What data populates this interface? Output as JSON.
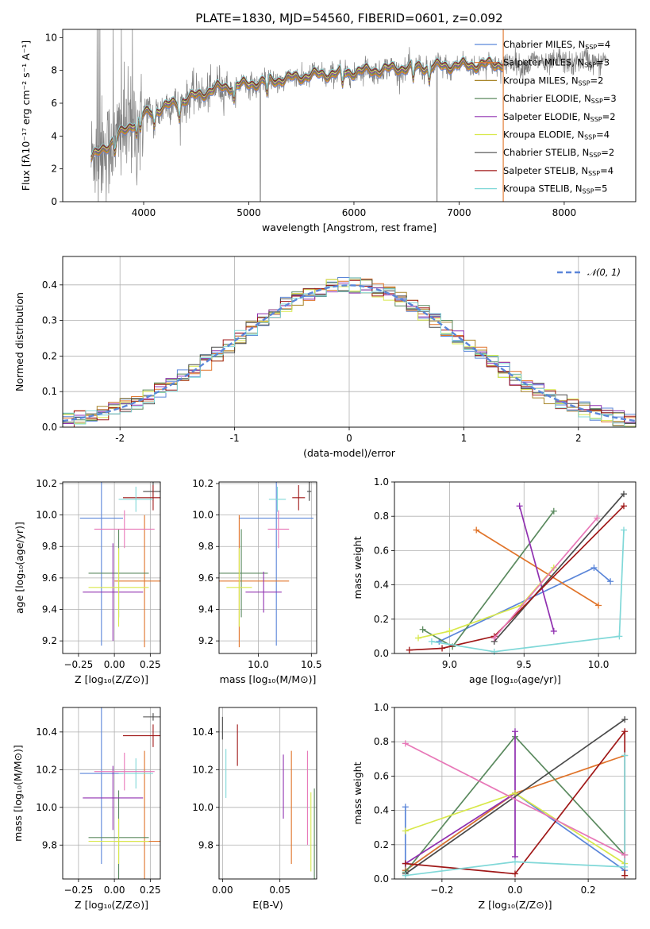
{
  "chart_data": [
    {
      "id": "spectrum",
      "type": "line",
      "title": "PLATE=1830, MJD=54560, FIBERID=0601, z=0.092",
      "xlabel": "wavelength [Angstrom, rest frame]",
      "ylabel": "Flux [fλ10⁻¹⁷ erg cm⁻² s⁻¹ A⁻¹]",
      "xlim": [
        3230,
        8680
      ],
      "ylim": [
        0,
        10.5
      ],
      "xticks": [
        4000,
        5000,
        6000,
        7000,
        8000
      ],
      "yticks": [
        0,
        2,
        4,
        6,
        8,
        10
      ],
      "legend_position": "right",
      "grid": false,
      "series": [
        {
          "name": "Chabrier MILES, N",
          "sub": "SSP",
          "suffix": "=4",
          "color": "#5b86d9"
        },
        {
          "name": "Salpeter MILES, N",
          "sub": "SSP",
          "suffix": "=3",
          "color": "#e0742a"
        },
        {
          "name": "Kroupa MILES, N",
          "sub": "SSP",
          "suffix": "=2",
          "color": "#a8862a"
        },
        {
          "name": "Chabrier ELODIE, N",
          "sub": "SSP",
          "suffix": "=3",
          "color": "#5b8a5f"
        },
        {
          "name": "Salpeter ELODIE, N",
          "sub": "SSP",
          "suffix": "=2",
          "color": "#9030b0"
        },
        {
          "name": "Kroupa ELODIE, N",
          "sub": "SSP",
          "suffix": "=4",
          "color": "#d8e84a"
        },
        {
          "name": "Chabrier STELIB, N",
          "sub": "SSP",
          "suffix": "=2",
          "color": "#4a4a4a"
        },
        {
          "name": "Salpeter STELIB, N",
          "sub": "SSP",
          "suffix": "=4",
          "color": "#a01818"
        },
        {
          "name": "Kroupa STELIB, N",
          "sub": "SSP",
          "suffix": "=5",
          "color": "#80d8d8"
        }
      ],
      "data_color": "#808080",
      "x_range_data": [
        3500,
        8400
      ],
      "model_range": [
        3500,
        7420
      ]
    },
    {
      "id": "residuals",
      "type": "histogram",
      "xlabel": "(data-model)/error",
      "ylabel": "Normed distribution",
      "xlim": [
        -2.5,
        2.5
      ],
      "ylim": [
        0,
        0.48
      ],
      "xticks": [
        -2,
        -1,
        0,
        1,
        2
      ],
      "yticks": [
        0,
        0.1,
        0.2,
        0.3,
        0.4
      ],
      "legend": "𝒩(0, 1)",
      "legend_position": "top-right",
      "grid": true,
      "gauss_color": "#5b86d9"
    },
    {
      "id": "z-age",
      "type": "errorbar",
      "xlabel": "Z [log₁₀(Z/Z⊙)]",
      "ylabel": "age  [log₁₀(age/yr)]",
      "xlim": [
        -0.36,
        0.32
      ],
      "ylim": [
        9.12,
        10.21
      ],
      "xticks": [
        -0.25,
        0.0,
        0.25
      ],
      "xticklabels": [
        "−0.25",
        "0.00",
        "0.25"
      ],
      "yticks": [
        9.2,
        9.4,
        9.6,
        9.8,
        10.0,
        10.2
      ],
      "grid": true,
      "points": [
        {
          "x": -0.09,
          "y": 9.98,
          "xe": 0.15,
          "ye": 0.81,
          "color": "#5b86d9"
        },
        {
          "x": 0.21,
          "y": 9.58,
          "xe": 0.21,
          "ye": 0.42,
          "color": "#e0742a"
        },
        {
          "x": 0.03,
          "y": 9.63,
          "xe": 0.21,
          "ye": 0.28,
          "color": "#5b8a5f"
        },
        {
          "x": -0.01,
          "y": 9.51,
          "xe": 0.21,
          "ye": 0.31,
          "color": "#9030b0"
        },
        {
          "x": 0.03,
          "y": 9.54,
          "xe": 0.21,
          "ye": 0.25,
          "color": "#d8e84a"
        },
        {
          "x": 0.27,
          "y": 10.15,
          "xe": 0.07,
          "ye": 0.06,
          "color": "#4a4a4a"
        },
        {
          "x": 0.27,
          "y": 10.11,
          "xe": 0.21,
          "ye": 0.08,
          "color": "#a01818"
        },
        {
          "x": 0.15,
          "y": 10.1,
          "xe": 0.12,
          "ye": 0.08,
          "color": "#80d8d8"
        },
        {
          "x": 0.07,
          "y": 9.91,
          "xe": 0.21,
          "ye": 0.12,
          "color": "#e878b8"
        }
      ]
    },
    {
      "id": "mass-age",
      "type": "errorbar",
      "xlabel": "mass [log₁₀(M/M⊙)]",
      "ylabel": "",
      "xlim": [
        9.63,
        10.55
      ],
      "ylim": [
        9.12,
        10.21
      ],
      "xticks": [
        10.0,
        10.5
      ],
      "xticklabels": [
        "10.0",
        "10.5"
      ],
      "yticks": [
        9.2,
        9.4,
        9.6,
        9.8,
        10.0,
        10.2
      ],
      "grid": true,
      "points": [
        {
          "x": 10.17,
          "y": 9.98,
          "xe": 0.35,
          "ye": 0.81,
          "color": "#5b86d9"
        },
        {
          "x": 9.82,
          "y": 9.58,
          "xe": 0.47,
          "ye": 0.42,
          "color": "#e0742a"
        },
        {
          "x": 9.84,
          "y": 9.63,
          "xe": 0.25,
          "ye": 0.28,
          "color": "#5b8a5f"
        },
        {
          "x": 10.05,
          "y": 9.51,
          "xe": 0.17,
          "ye": 0.13,
          "color": "#9030b0"
        },
        {
          "x": 9.82,
          "y": 9.54,
          "xe": 0.12,
          "ye": 0.25,
          "color": "#d8e84a"
        },
        {
          "x": 10.48,
          "y": 10.15,
          "xe": 0.02,
          "ye": 0.06,
          "color": "#4a4a4a"
        },
        {
          "x": 10.38,
          "y": 10.11,
          "xe": 0.06,
          "ye": 0.08,
          "color": "#a01818"
        },
        {
          "x": 10.18,
          "y": 10.1,
          "xe": 0.08,
          "ye": 0.08,
          "color": "#80d8d8"
        },
        {
          "x": 10.19,
          "y": 9.91,
          "xe": 0.1,
          "ye": 0.12,
          "color": "#e878b8"
        }
      ]
    },
    {
      "id": "age-weight",
      "type": "line",
      "xlabel": "age  [log₁₀(age/yr)]",
      "ylabel": "mass weight",
      "xlim": [
        8.63,
        10.25
      ],
      "ylim": [
        0,
        1.0
      ],
      "xticks": [
        9.0,
        9.5,
        10.0
      ],
      "xticklabels": [
        "9.0",
        "9.5",
        "10.0"
      ],
      "yticks": [
        0,
        0.2,
        0.4,
        0.6,
        0.8,
        1.0
      ],
      "grid": true,
      "lines": [
        {
          "color": "#5b86d9",
          "x": [
            8.93,
            9.97,
            10.08
          ],
          "y": [
            0.07,
            0.5,
            0.42
          ]
        },
        {
          "color": "#e0742a",
          "x": [
            9.18,
            10.0
          ],
          "y": [
            0.72,
            0.28
          ]
        },
        {
          "color": "#5b8a5f",
          "x": [
            8.82,
            9.02,
            9.7
          ],
          "y": [
            0.14,
            0.04,
            0.83
          ]
        },
        {
          "color": "#9030b0",
          "x": [
            9.47,
            9.7
          ],
          "y": [
            0.86,
            0.13
          ]
        },
        {
          "color": "#d8e84a",
          "x": [
            8.79,
            9.0,
            9.48,
            9.7
          ],
          "y": [
            0.09,
            0.13,
            0.28,
            0.5
          ]
        },
        {
          "color": "#4a4a4a",
          "x": [
            9.3,
            10.17
          ],
          "y": [
            0.07,
            0.93
          ]
        },
        {
          "color": "#a01818",
          "x": [
            8.73,
            8.95,
            9.3,
            10.17
          ],
          "y": [
            0.02,
            0.03,
            0.1,
            0.86
          ]
        },
        {
          "color": "#80d8d8",
          "x": [
            8.88,
            9.3,
            10.14,
            10.17
          ],
          "y": [
            0.07,
            0.01,
            0.1,
            0.72
          ]
        },
        {
          "color": "#e878b8",
          "x": [
            9.3,
            9.99
          ],
          "y": [
            0.09,
            0.79
          ]
        }
      ]
    },
    {
      "id": "z-mass",
      "type": "errorbar",
      "xlabel": "Z [log₁₀(Z/Z⊙)]",
      "ylabel": "mass [log₁₀(M/M⊙)]",
      "xlim": [
        -0.36,
        0.32
      ],
      "ylim": [
        9.62,
        10.53
      ],
      "xticks": [
        -0.25,
        0.0,
        0.25
      ],
      "xticklabels": [
        "−0.25",
        "0.00",
        "0.25"
      ],
      "yticks": [
        9.8,
        10.0,
        10.2,
        10.4
      ],
      "grid": true,
      "points": [
        {
          "x": -0.09,
          "y": 10.18,
          "xe": 0.15,
          "ye": 0.48,
          "color": "#5b86d9"
        },
        {
          "x": 0.21,
          "y": 9.82,
          "xe": 0.21,
          "ye": 0.48,
          "color": "#e0742a"
        },
        {
          "x": 0.03,
          "y": 9.84,
          "xe": 0.21,
          "ye": 0.25,
          "color": "#5b8a5f"
        },
        {
          "x": -0.01,
          "y": 10.05,
          "xe": 0.21,
          "ye": 0.17,
          "color": "#9030b0"
        },
        {
          "x": 0.03,
          "y": 9.82,
          "xe": 0.21,
          "ye": 0.12,
          "color": "#d8e84a"
        },
        {
          "x": 0.27,
          "y": 10.48,
          "xe": 0.07,
          "ye": 0.02,
          "color": "#4a4a4a"
        },
        {
          "x": 0.27,
          "y": 10.38,
          "xe": 0.21,
          "ye": 0.06,
          "color": "#a01818"
        },
        {
          "x": 0.15,
          "y": 10.18,
          "xe": 0.12,
          "ye": 0.08,
          "color": "#80d8d8"
        },
        {
          "x": 0.07,
          "y": 10.19,
          "xe": 0.21,
          "ye": 0.1,
          "color": "#e878b8"
        }
      ]
    },
    {
      "id": "ebv-mass",
      "type": "errorbar",
      "xlabel": "E(B-V)",
      "ylabel": "",
      "xlim": [
        -0.003,
        0.082
      ],
      "ylim": [
        9.62,
        10.53
      ],
      "xticks": [
        0.0,
        0.05
      ],
      "xticklabels": [
        "0.00",
        "0.05"
      ],
      "yticks": [
        9.8,
        10.0,
        10.2,
        10.4
      ],
      "grid": true,
      "points": [
        {
          "x": 0.0,
          "y": 10.42,
          "xe": 0,
          "ye": 0.06,
          "color": "#4a4a4a"
        },
        {
          "x": 0.003,
          "y": 10.18,
          "xe": 0,
          "ye": 0.13,
          "color": "#80d8d8"
        },
        {
          "x": 0.013,
          "y": 10.33,
          "xe": 0,
          "ye": 0.11,
          "color": "#a01818"
        },
        {
          "x": 0.053,
          "y": 10.11,
          "xe": 0,
          "ye": 0.17,
          "color": "#9030b0"
        },
        {
          "x": 0.06,
          "y": 10.0,
          "xe": 0,
          "ye": 0.3,
          "color": "#e0742a"
        },
        {
          "x": 0.074,
          "y": 10.05,
          "xe": 0,
          "ye": 0.25,
          "color": "#e878b8"
        },
        {
          "x": 0.077,
          "y": 9.87,
          "xe": 0,
          "ye": 0.21,
          "color": "#d8e84a"
        },
        {
          "x": 0.08,
          "y": 9.85,
          "xe": 0,
          "ye": 0.25,
          "color": "#5b8a5f"
        }
      ]
    },
    {
      "id": "z-weight",
      "type": "line",
      "xlabel": "Z [log₁₀(Z/Z⊙)]",
      "ylabel": "mass weight",
      "xlim": [
        -0.33,
        0.33
      ],
      "ylim": [
        0,
        1.0
      ],
      "xticks": [
        -0.2,
        0.0,
        0.2
      ],
      "xticklabels": [
        "−0.2",
        "0.0",
        "0.2"
      ],
      "yticks": [
        0,
        0.2,
        0.4,
        0.6,
        0.8,
        1.0
      ],
      "grid": true,
      "lines": [
        {
          "color": "#5b86d9",
          "x": [
            -0.3,
            -0.3,
            0.0,
            0.3
          ],
          "y": [
            0.42,
            0.05,
            0.5,
            0.05
          ]
        },
        {
          "color": "#e0742a",
          "x": [
            -0.3,
            0.0,
            0.3
          ],
          "y": [
            0.05,
            0.5,
            0.72
          ]
        },
        {
          "color": "#5b8a5f",
          "x": [
            -0.3,
            0.0,
            0.3
          ],
          "y": [
            0.04,
            0.83,
            0.14
          ]
        },
        {
          "color": "#9030b0",
          "x": [
            -0.3,
            0.0,
            0.0,
            0.0
          ],
          "y": [
            0.09,
            0.5,
            0.86,
            0.13
          ]
        },
        {
          "color": "#d8e84a",
          "x": [
            -0.3,
            0.0,
            0.3
          ],
          "y": [
            0.28,
            0.5,
            0.09
          ]
        },
        {
          "color": "#4a4a4a",
          "x": [
            -0.3,
            0.3
          ],
          "y": [
            0.03,
            0.93
          ]
        },
        {
          "color": "#a01818",
          "x": [
            -0.3,
            0.0,
            0.3,
            0.3
          ],
          "y": [
            0.09,
            0.03,
            0.86,
            0.02
          ]
        },
        {
          "color": "#80d8d8",
          "x": [
            -0.3,
            0.0,
            0.3,
            0.3
          ],
          "y": [
            0.02,
            0.1,
            0.07,
            0.72
          ]
        },
        {
          "color": "#e878b8",
          "x": [
            -0.3,
            0.3
          ],
          "y": [
            0.79,
            0.14
          ]
        }
      ]
    }
  ]
}
